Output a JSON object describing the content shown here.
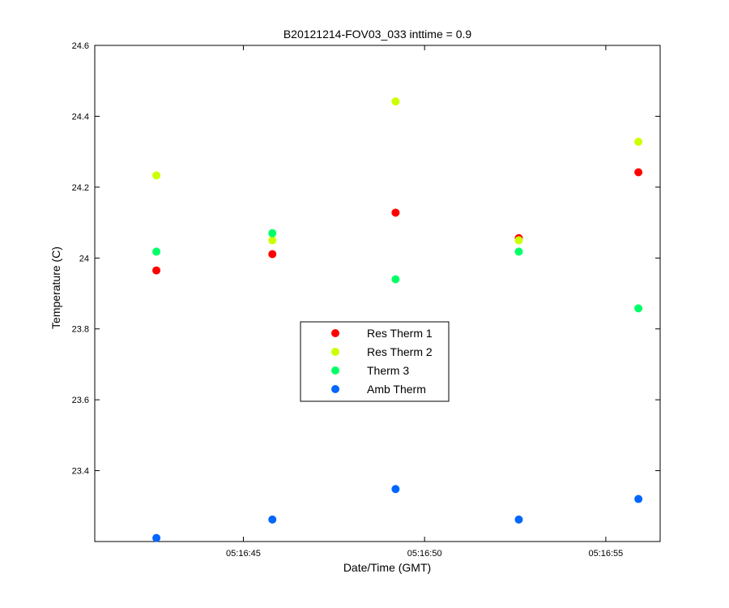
{
  "chart_data": {
    "type": "scatter",
    "title": "B20121214-FOV03_033 inttime = 0.9",
    "xlabel": "Date/Time (GMT)",
    "ylabel": "Temperature (C)",
    "x": [
      "05:16:42.6",
      "05:16:45.8",
      "05:16:49.2",
      "05:16:52.6",
      "05:16:55.9"
    ],
    "xlim": [
      "05:16:40.9",
      "05:16:56.5"
    ],
    "ylim": [
      23.2,
      24.6
    ],
    "xticks": [
      "05:16:45",
      "05:16:50",
      "05:16:55"
    ],
    "yticks": [
      "23.4",
      "23.6",
      "23.8",
      "24",
      "24.2",
      "24.4",
      "24.6"
    ],
    "legend_position": "center",
    "grid": false,
    "series": [
      {
        "name": "Res Therm 1",
        "color": "#ff0000",
        "values": [
          23.965,
          24.011,
          24.128,
          24.056,
          24.242
        ]
      },
      {
        "name": "Res Therm 2",
        "color": "#ccff00",
        "values": [
          24.233,
          24.05,
          24.442,
          24.05,
          24.328
        ]
      },
      {
        "name": "Therm 3",
        "color": "#00ff66",
        "values": [
          24.018,
          24.07,
          23.94,
          24.018,
          23.858
        ]
      },
      {
        "name": "Amb Therm",
        "color": "#0066ff",
        "values": [
          23.21,
          23.262,
          23.348,
          23.262,
          23.32
        ]
      }
    ]
  }
}
